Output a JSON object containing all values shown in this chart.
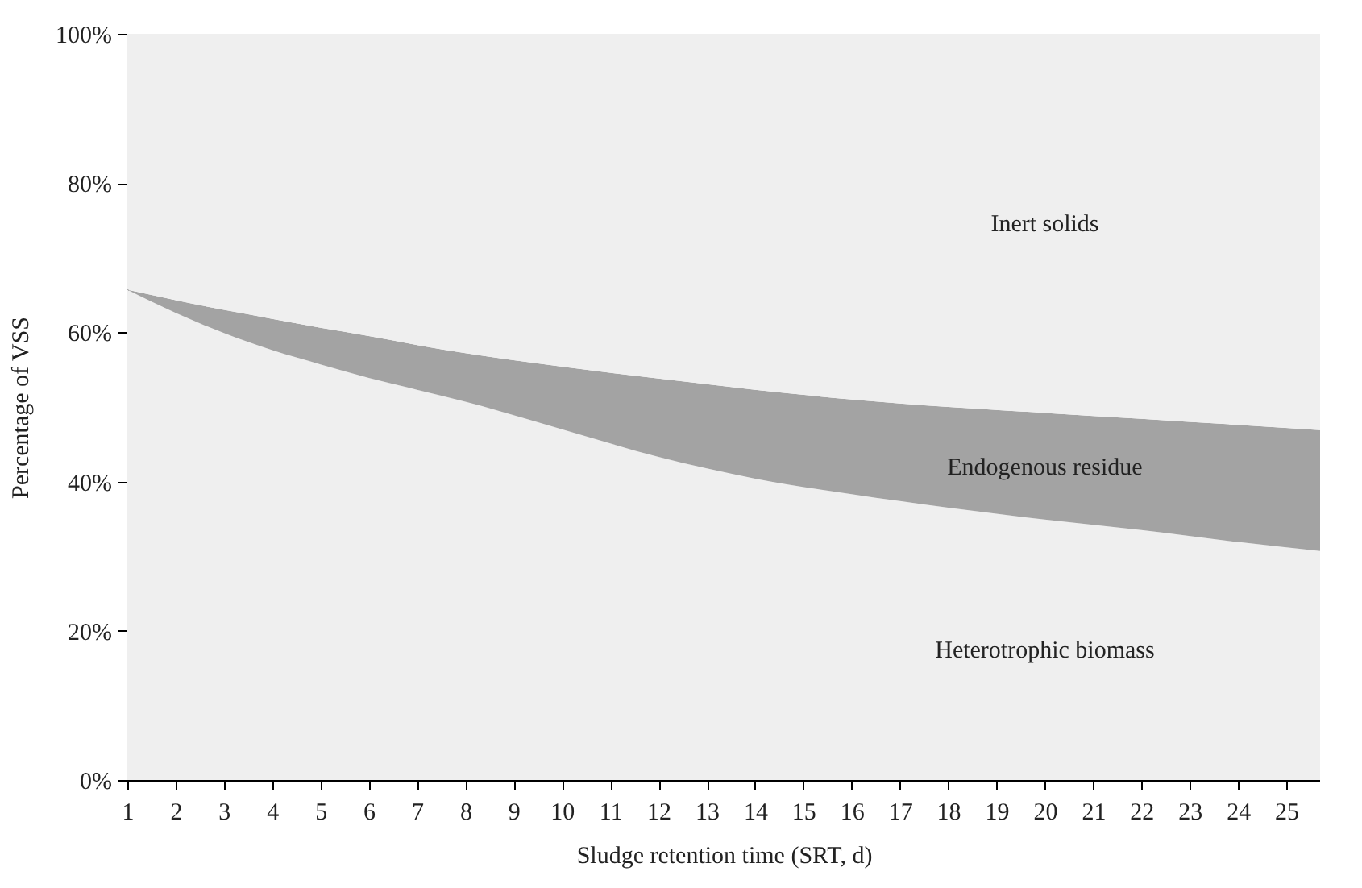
{
  "chart_data": {
    "type": "area",
    "stacked": true,
    "xlabel": "Sludge retention time (SRT, d)",
    "ylabel": "Percentage of VSS",
    "x": [
      1,
      2,
      3,
      4,
      5,
      6,
      7,
      8,
      10,
      12,
      14,
      16,
      18,
      20,
      22,
      24,
      25.7
    ],
    "series": [
      {
        "name": "Heterotrophic biomass",
        "color": "#efefef",
        "values": [
          65.7,
          62.6,
          59.9,
          57.6,
          55.7,
          53.9,
          52.3,
          50.7,
          47.0,
          43.3,
          40.4,
          38.3,
          36.5,
          34.9,
          33.5,
          31.9,
          30.7
        ]
      },
      {
        "name": "Endogenous residue",
        "color": "#a3a3a3",
        "values": [
          0.0,
          1.7,
          3.1,
          4.2,
          4.9,
          5.6,
          6.0,
          6.5,
          8.4,
          10.5,
          11.9,
          12.7,
          13.5,
          14.3,
          14.9,
          15.7,
          16.2
        ]
      },
      {
        "name": "Inert solids",
        "color": "#efefef",
        "values": [
          34.3,
          35.7,
          37.0,
          38.2,
          39.4,
          40.5,
          41.7,
          42.8,
          44.6,
          46.2,
          47.7,
          49.0,
          50.0,
          50.8,
          51.6,
          52.4,
          53.1
        ]
      }
    ],
    "xlim": [
      1,
      25.7
    ],
    "xticks": [
      1,
      2,
      3,
      4,
      5,
      6,
      7,
      8,
      9,
      10,
      11,
      12,
      13,
      14,
      15,
      16,
      17,
      18,
      19,
      20,
      21,
      22,
      23,
      24,
      25
    ],
    "ylim": [
      0,
      100
    ],
    "yticks": [
      {
        "value": 0,
        "label": "0%"
      },
      {
        "value": 20,
        "label": "20%"
      },
      {
        "value": 40,
        "label": "40%"
      },
      {
        "value": 60,
        "label": "60%"
      },
      {
        "value": 80,
        "label": "80%"
      },
      {
        "value": 100,
        "label": "100%"
      }
    ],
    "grid": false,
    "legend": false
  }
}
